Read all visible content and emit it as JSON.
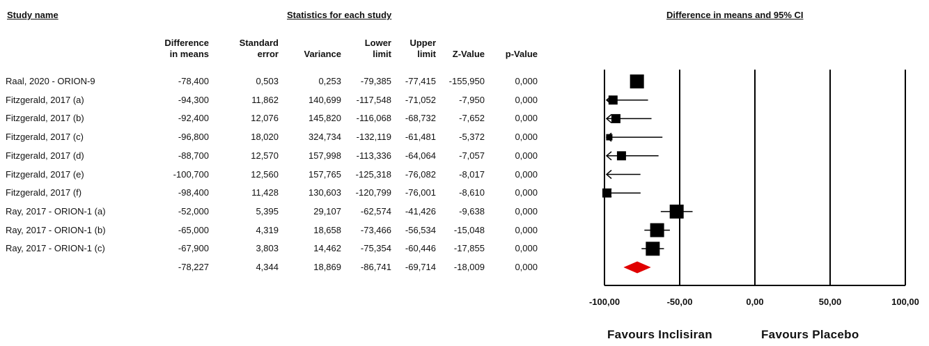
{
  "headers": {
    "study_name": "Study name",
    "statistics": "Statistics for each study",
    "ci": "Difference in means and 95% CI"
  },
  "columns": [
    {
      "key": "diff",
      "line1": "Difference",
      "line2": "in means"
    },
    {
      "key": "se",
      "line1": "Standard",
      "line2": "error"
    },
    {
      "key": "var",
      "line1": "",
      "line2": "Variance"
    },
    {
      "key": "lower",
      "line1": "Lower",
      "line2": "limit"
    },
    {
      "key": "upper",
      "line1": "Upper",
      "line2": "limit"
    },
    {
      "key": "z",
      "line1": "",
      "line2": "Z-Value"
    },
    {
      "key": "p",
      "line1": "",
      "line2": "p-Value"
    }
  ],
  "rows": [
    {
      "name": "Raal, 2020 - ORION-9",
      "diff": "-78,400",
      "se": "0,503",
      "var": "0,253",
      "lower": "-79,385",
      "upper": "-77,415",
      "z": "-155,950",
      "p": "0,000"
    },
    {
      "name": "Fitzgerald, 2017 (a)",
      "diff": "-94,300",
      "se": "11,862",
      "var": "140,699",
      "lower": "-117,548",
      "upper": "-71,052",
      "z": "-7,950",
      "p": "0,000"
    },
    {
      "name": "Fitzgerald, 2017 (b)",
      "diff": "-92,400",
      "se": "12,076",
      "var": "145,820",
      "lower": "-116,068",
      "upper": "-68,732",
      "z": "-7,652",
      "p": "0,000"
    },
    {
      "name": "Fitzgerald, 2017 (c)",
      "diff": "-96,800",
      "se": "18,020",
      "var": "324,734",
      "lower": "-132,119",
      "upper": "-61,481",
      "z": "-5,372",
      "p": "0,000"
    },
    {
      "name": "Fitzgerald, 2017 (d)",
      "diff": "-88,700",
      "se": "12,570",
      "var": "157,998",
      "lower": "-113,336",
      "upper": "-64,064",
      "z": "-7,057",
      "p": "0,000"
    },
    {
      "name": "Fitzgerald, 2017 (e)",
      "diff": "-100,700",
      "se": "12,560",
      "var": "157,765",
      "lower": "-125,318",
      "upper": "-76,082",
      "z": "-8,017",
      "p": "0,000"
    },
    {
      "name": "Fitzgerald, 2017 (f)",
      "diff": "-98,400",
      "se": "11,428",
      "var": "130,603",
      "lower": "-120,799",
      "upper": "-76,001",
      "z": "-8,610",
      "p": "0,000"
    },
    {
      "name": "Ray, 2017 - ORION-1 (a)",
      "diff": "-52,000",
      "se": "5,395",
      "var": "29,107",
      "lower": "-62,574",
      "upper": "-41,426",
      "z": "-9,638",
      "p": "0,000"
    },
    {
      "name": "Ray, 2017 - ORION-1 (b)",
      "diff": "-65,000",
      "se": "4,319",
      "var": "18,658",
      "lower": "-73,466",
      "upper": "-56,534",
      "z": "-15,048",
      "p": "0,000"
    },
    {
      "name": "Ray, 2017 - ORION-1 (c)",
      "diff": "-67,900",
      "se": "3,803",
      "var": "14,462",
      "lower": "-75,354",
      "upper": "-60,446",
      "z": "-17,855",
      "p": "0,000"
    },
    {
      "name": "",
      "diff": "-78,227",
      "se": "4,344",
      "var": "18,869",
      "lower": "-86,741",
      "upper": "-69,714",
      "z": "-18,009",
      "p": "0,000"
    }
  ],
  "chart_data": {
    "type": "forest",
    "xlim": [
      -100,
      100
    ],
    "ticks": [
      -100,
      -50,
      0,
      50,
      100
    ],
    "tick_labels": [
      "-100,00",
      "-50,00",
      "0,00",
      "50,00",
      "100,00"
    ],
    "studies": [
      {
        "name": "Raal, 2020 - ORION-9",
        "mean": -78.4,
        "lower": -79.385,
        "upper": -77.415,
        "box": "large"
      },
      {
        "name": "Fitzgerald, 2017 (a)",
        "mean": -94.3,
        "lower": -117.548,
        "upper": -71.052,
        "box": "small"
      },
      {
        "name": "Fitzgerald, 2017 (b)",
        "mean": -92.4,
        "lower": -116.068,
        "upper": -68.732,
        "box": "small"
      },
      {
        "name": "Fitzgerald, 2017 (c)",
        "mean": -96.8,
        "lower": -132.119,
        "upper": -61.481,
        "box": "tiny"
      },
      {
        "name": "Fitzgerald, 2017 (d)",
        "mean": -88.7,
        "lower": -113.336,
        "upper": -64.064,
        "box": "small"
      },
      {
        "name": "Fitzgerald, 2017 (e)",
        "mean": -100.7,
        "lower": -125.318,
        "upper": -76.082,
        "box": "none"
      },
      {
        "name": "Fitzgerald, 2017 (f)",
        "mean": -98.4,
        "lower": -120.799,
        "upper": -76.001,
        "box": "small"
      },
      {
        "name": "Ray, 2017 - ORION-1 (a)",
        "mean": -52.0,
        "lower": -62.574,
        "upper": -41.426,
        "box": "large"
      },
      {
        "name": "Ray, 2017 - ORION-1 (b)",
        "mean": -65.0,
        "lower": -73.466,
        "upper": -56.534,
        "box": "large"
      },
      {
        "name": "Ray, 2017 - ORION-1 (c)",
        "mean": -67.9,
        "lower": -75.354,
        "upper": -60.446,
        "box": "large"
      }
    ],
    "summary": {
      "mean": -78.227,
      "lower": -86.741,
      "upper": -69.714
    },
    "colors": {
      "marker": "#000000",
      "summary": "#e00000",
      "line": "#000000"
    },
    "favours_left": "Favours Inclisiran",
    "favours_right": "Favours Placebo"
  }
}
